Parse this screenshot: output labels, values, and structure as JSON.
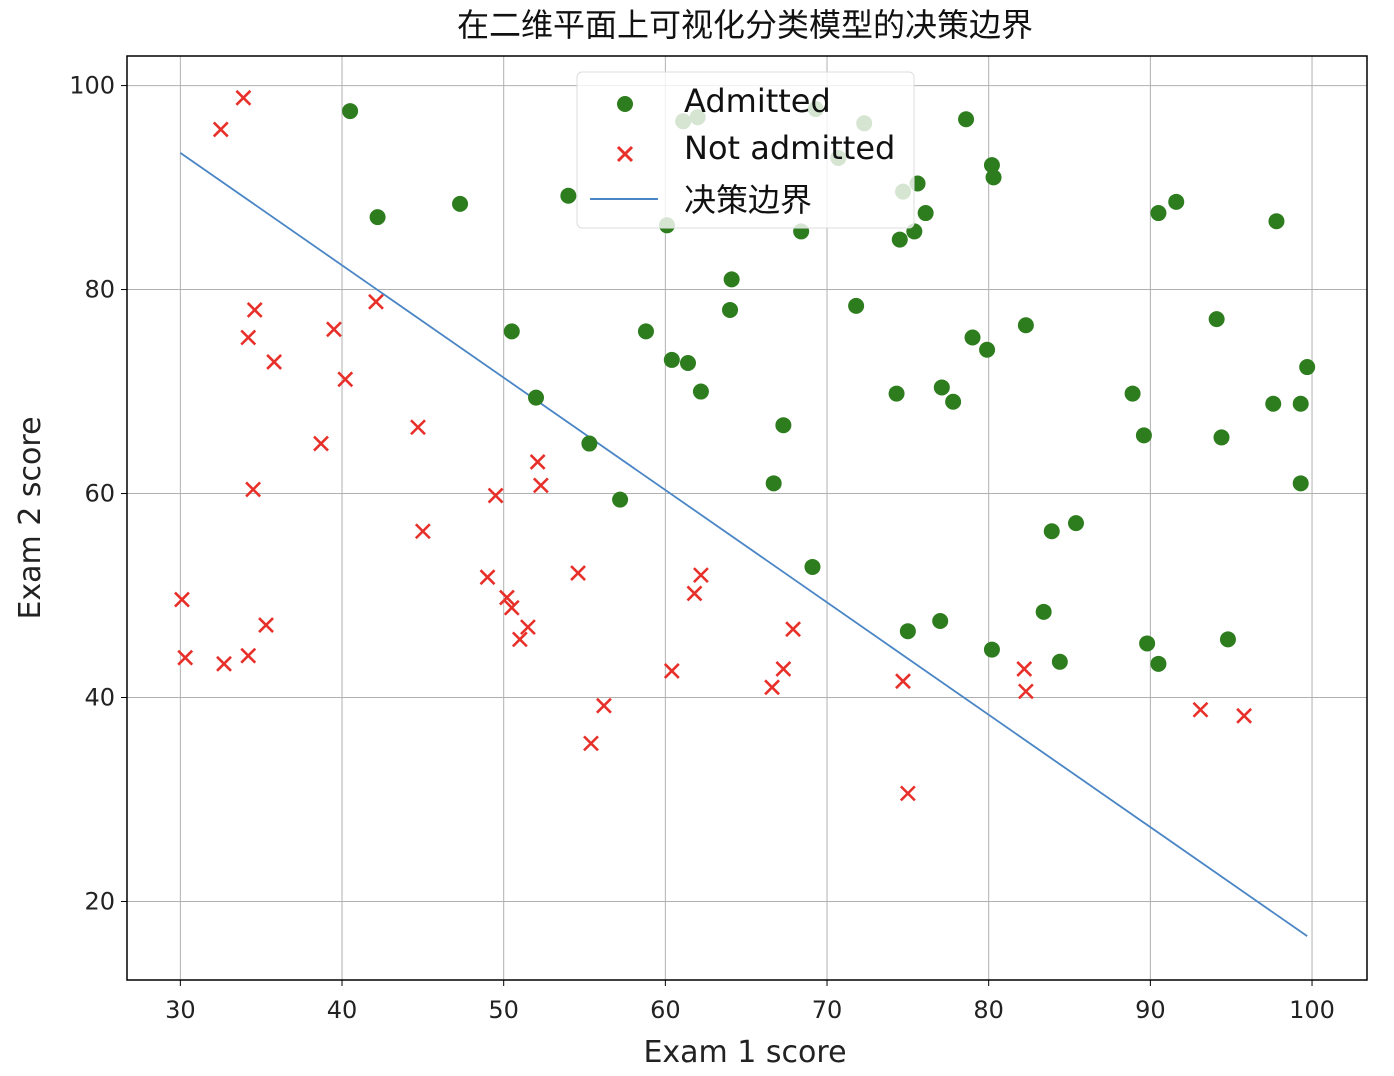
{
  "chart_data": {
    "type": "scatter",
    "title": "在二维平面上可视化分类模型的决策边界",
    "xlabel": "Exam 1 score",
    "ylabel": "Exam 2 score",
    "xlim": [
      26.7,
      103.4
    ],
    "ylim": [
      12.3,
      102.9
    ],
    "xticks": [
      30,
      40,
      50,
      60,
      70,
      80,
      90,
      100
    ],
    "yticks": [
      20,
      40,
      60,
      80,
      100
    ],
    "grid": true,
    "legend_position": "top-center",
    "colors": {
      "admitted": "#2d7d1e",
      "not_admitted": "#e8302a",
      "boundary": "#4a86c5"
    },
    "series": [
      {
        "name": "Admitted",
        "marker": "circle",
        "points": [
          [
            40.5,
            97.5
          ],
          [
            42.2,
            87.1
          ],
          [
            47.3,
            88.4
          ],
          [
            54.0,
            89.2
          ],
          [
            50.5,
            75.9
          ],
          [
            52.0,
            69.4
          ],
          [
            55.3,
            64.9
          ],
          [
            57.2,
            59.4
          ],
          [
            58.8,
            75.9
          ],
          [
            60.1,
            86.3
          ],
          [
            60.4,
            73.1
          ],
          [
            61.4,
            72.8
          ],
          [
            62.2,
            70.0
          ],
          [
            61.1,
            96.5
          ],
          [
            62.0,
            96.9
          ],
          [
            64.0,
            78.0
          ],
          [
            64.1,
            81.0
          ],
          [
            67.3,
            66.7
          ],
          [
            66.7,
            61.0
          ],
          [
            69.1,
            52.8
          ],
          [
            68.4,
            85.7
          ],
          [
            69.3,
            97.7
          ],
          [
            70.7,
            92.9
          ],
          [
            71.8,
            78.4
          ],
          [
            72.3,
            96.3
          ],
          [
            74.3,
            69.8
          ],
          [
            74.5,
            84.9
          ],
          [
            75.4,
            85.7
          ],
          [
            74.7,
            89.6
          ],
          [
            75.6,
            90.4
          ],
          [
            76.1,
            87.5
          ],
          [
            75.0,
            46.5
          ],
          [
            77.0,
            47.5
          ],
          [
            77.1,
            70.4
          ],
          [
            77.8,
            69.0
          ],
          [
            78.6,
            96.7
          ],
          [
            79.0,
            75.3
          ],
          [
            79.9,
            74.1
          ],
          [
            80.2,
            92.2
          ],
          [
            80.3,
            91.0
          ],
          [
            80.2,
            44.7
          ],
          [
            82.3,
            76.5
          ],
          [
            83.4,
            48.4
          ],
          [
            83.9,
            56.3
          ],
          [
            84.4,
            43.5
          ],
          [
            85.4,
            57.1
          ],
          [
            88.9,
            69.8
          ],
          [
            89.6,
            65.7
          ],
          [
            89.8,
            45.3
          ],
          [
            90.5,
            43.3
          ],
          [
            90.5,
            87.5
          ],
          [
            91.6,
            88.6
          ],
          [
            94.1,
            77.1
          ],
          [
            94.4,
            65.5
          ],
          [
            94.8,
            45.7
          ],
          [
            97.6,
            68.8
          ],
          [
            97.8,
            86.7
          ],
          [
            99.3,
            68.8
          ],
          [
            99.3,
            61.0
          ],
          [
            99.7,
            72.4
          ]
        ]
      },
      {
        "name": "Not admitted",
        "marker": "x",
        "points": [
          [
            32.5,
            95.7
          ],
          [
            33.9,
            98.8
          ],
          [
            34.6,
            78.0
          ],
          [
            34.2,
            75.3
          ],
          [
            35.8,
            72.9
          ],
          [
            34.5,
            60.4
          ],
          [
            39.5,
            76.1
          ],
          [
            40.2,
            71.2
          ],
          [
            42.1,
            78.8
          ],
          [
            38.7,
            64.9
          ],
          [
            44.7,
            66.5
          ],
          [
            45.0,
            56.3
          ],
          [
            30.1,
            49.6
          ],
          [
            30.3,
            43.9
          ],
          [
            32.7,
            43.3
          ],
          [
            34.2,
            44.1
          ],
          [
            35.3,
            47.1
          ],
          [
            49.0,
            51.8
          ],
          [
            49.5,
            59.8
          ],
          [
            50.2,
            49.8
          ],
          [
            50.5,
            48.8
          ],
          [
            51.0,
            45.7
          ],
          [
            51.5,
            46.9
          ],
          [
            52.1,
            63.1
          ],
          [
            52.3,
            60.8
          ],
          [
            54.6,
            52.2
          ],
          [
            55.4,
            35.5
          ],
          [
            56.2,
            39.2
          ],
          [
            60.4,
            42.6
          ],
          [
            61.8,
            50.2
          ],
          [
            62.2,
            52.0
          ],
          [
            66.6,
            41.0
          ],
          [
            67.3,
            42.8
          ],
          [
            67.9,
            46.7
          ],
          [
            74.7,
            41.6
          ],
          [
            75.0,
            30.6
          ],
          [
            82.2,
            42.8
          ],
          [
            82.3,
            40.6
          ],
          [
            93.1,
            38.8
          ],
          [
            95.8,
            38.2
          ]
        ]
      },
      {
        "name": "决策边界",
        "type": "line",
        "points": [
          [
            30,
            93.4
          ],
          [
            99.7,
            16.6
          ]
        ]
      }
    ]
  }
}
